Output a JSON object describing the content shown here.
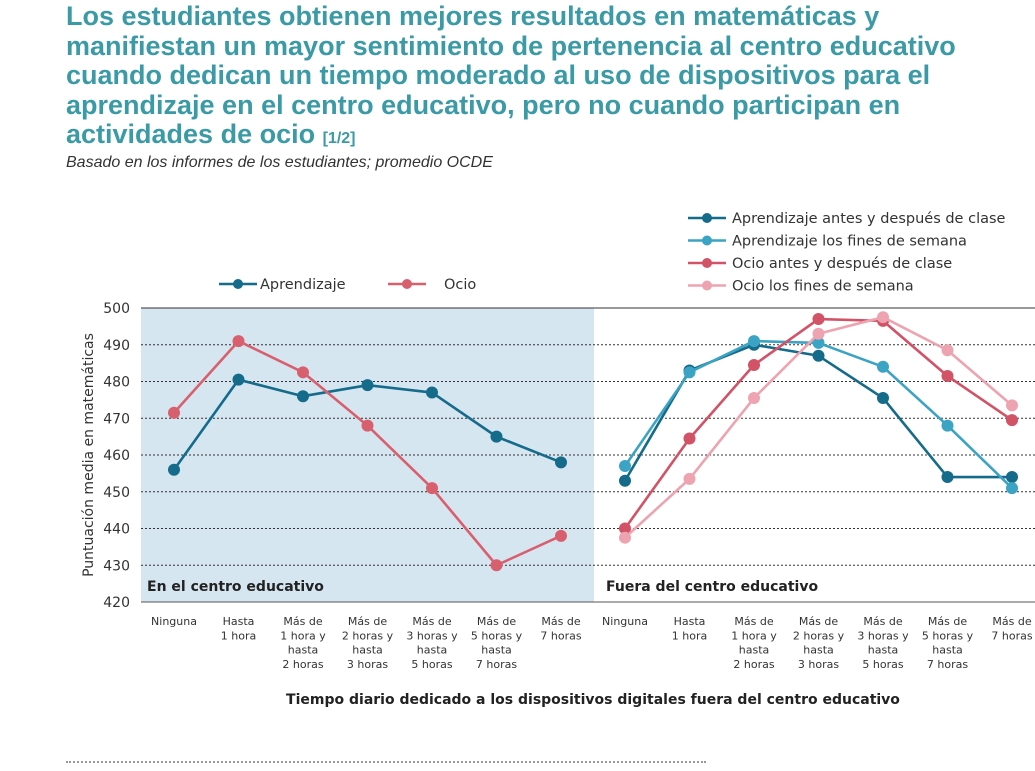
{
  "header": {
    "title": "Los estudiantes obtienen mejores resultados en matemáticas y manifiestan un mayor sentimiento de pertenencia al centro educativo cuando dedican un tiempo moderado al uso de dispositivos para el aprendizaje en el centro educativo, pero no cuando participan en actividades de ocio",
    "part_label": "[1/2]",
    "subtitle": "Basado en los informes de los estudiantes; promedio OCDE"
  },
  "chart_data": [
    {
      "type": "line",
      "panel_label": "En el centro educativo",
      "categories": [
        "Ninguna",
        "Hasta 1 hora",
        "Más de 1 hora y hasta 2 horas",
        "Más de 2 horas y hasta 3 horas",
        "Más de 3 horas y hasta 5 horas",
        "Más de 5 horas y hasta 7 horas",
        "Más de 7 horas"
      ],
      "series": [
        {
          "name": "Aprendizaje",
          "color": "#156b8a",
          "values": [
            456,
            480.5,
            476,
            479,
            477,
            465,
            458
          ]
        },
        {
          "name": "Ocio",
          "color": "#d8606e",
          "values": [
            471.5,
            491,
            482.5,
            468,
            451,
            430,
            438
          ]
        }
      ],
      "ylabel": "Puntuación media en matemáticas",
      "ylim": [
        420,
        500
      ],
      "yticks": [
        420,
        430,
        440,
        450,
        460,
        470,
        480,
        490,
        500
      ],
      "grid": true,
      "background": "#d6e6f0",
      "legend_position": "top"
    },
    {
      "type": "line",
      "panel_label": "Fuera del centro educativo",
      "categories": [
        "Ninguna",
        "Hasta 1 hora",
        "Más de 1 hora y hasta 2 horas",
        "Más de 2 horas y hasta 3 horas",
        "Más de 3 horas y hasta 5 horas",
        "Más de 5 horas y hasta 7 horas",
        "Más de 7 horas"
      ],
      "series": [
        {
          "name": "Aprendizaje antes y después de clase",
          "color": "#156b8a",
          "values": [
            453,
            483,
            490,
            487,
            475.5,
            454,
            454
          ]
        },
        {
          "name": "Aprendizaje los fines de semana",
          "color": "#3ba3c4",
          "values": [
            457,
            482.5,
            491,
            490.5,
            484,
            468,
            451
          ]
        },
        {
          "name": "Ocio antes y después de clase",
          "color": "#d25266",
          "values": [
            440,
            464.5,
            484.5,
            497,
            496.5,
            481.5,
            469.5
          ]
        },
        {
          "name": "Ocio los fines de semana",
          "color": "#eea3b0",
          "values": [
            437.5,
            453.5,
            475.5,
            493,
            497.5,
            488.5,
            473.5
          ]
        }
      ],
      "ylim": [
        420,
        500
      ],
      "grid": true,
      "background": "#ffffff",
      "legend_position": "top-right"
    }
  ],
  "xaxis_title": "Tiempo diario dedicado a los dispositivos digitales fuera del centro educativo",
  "category_label_lines": [
    [
      "Ninguna"
    ],
    [
      "Hasta",
      "1 hora"
    ],
    [
      "Más de",
      "1 hora y",
      "hasta",
      "2 horas"
    ],
    [
      "Más de",
      "2 horas y",
      "hasta",
      "3 horas"
    ],
    [
      "Más de",
      "3 horas y",
      "hasta",
      "5 horas"
    ],
    [
      "Más de",
      "5 horas y",
      "hasta",
      "7 horas"
    ],
    [
      "Más de",
      "7 horas"
    ]
  ]
}
